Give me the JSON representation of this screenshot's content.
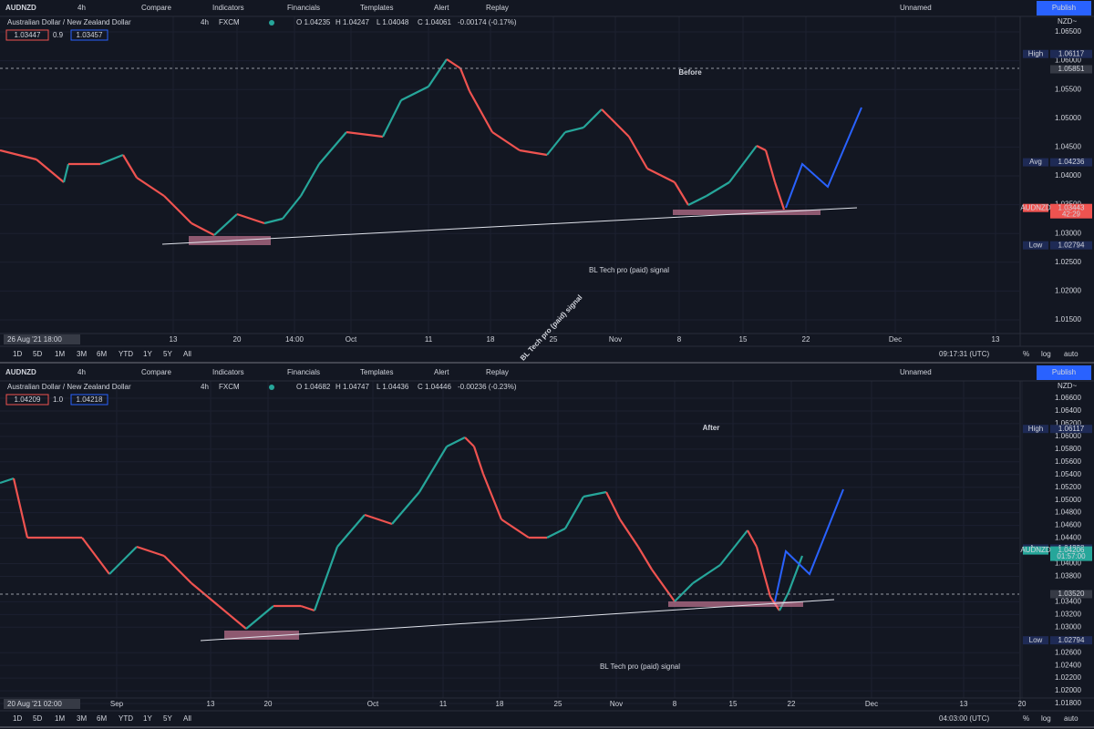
{
  "diagonal_watermark": "BL Tech pro (paid) signal",
  "panels": [
    {
      "toolbar": {
        "symbol": "AUDNZD",
        "interval": "4h",
        "buttons": [
          "Compare",
          "Indicators",
          "Financials",
          "Templates",
          "Alert",
          "Replay"
        ],
        "layout_name": "Unnamed",
        "publish": "Publish"
      },
      "legend": {
        "instrument": "Australian Dollar / New Zealand Dollar",
        "interval": "4h",
        "source": "FXCM",
        "ohlc": [
          "O 1.04235",
          "H 1.04247",
          "L 1.04048",
          "C 1.04061",
          "-0.00174 (-0.17%)"
        ],
        "bid": "1.03447",
        "spread": "0.9",
        "ask": "1.03457"
      },
      "label": "Before",
      "watermark": "BL Tech pro (paid) signal",
      "currency": "NZD~",
      "price_ticks": [
        "1.06500",
        "1.06000",
        "1.05500",
        "1.05000",
        "1.04500",
        "1.04000",
        "1.03500",
        "1.03000",
        "1.02500",
        "1.02000",
        "1.01500"
      ],
      "badges": [
        {
          "name": "High",
          "value": "1.06117"
        },
        {
          "value": "1.05851"
        },
        {
          "name": "Avg",
          "value": "1.04236"
        },
        {
          "name": "AUDNZD",
          "value": "1.03443",
          "timer": "42:29"
        },
        {
          "name": "Low",
          "value": "1.02794"
        }
      ],
      "time_ticks": [
        "13",
        "20",
        "14:00",
        "Oct",
        "11",
        "18",
        "25",
        "Nov",
        "8",
        "15",
        "22",
        "Dec",
        "13"
      ],
      "cursor_time": "26 Aug '21  18:00",
      "ranges": [
        "1D",
        "5D",
        "1M",
        "3M",
        "6M",
        "YTD",
        "1Y",
        "5Y",
        "All"
      ],
      "clock": "09:17:31 (UTC)",
      "scale_options": [
        "%",
        "log",
        "auto"
      ]
    },
    {
      "toolbar": {
        "symbol": "AUDNZD",
        "interval": "4h",
        "buttons": [
          "Compare",
          "Indicators",
          "Financials",
          "Templates",
          "Alert",
          "Replay"
        ],
        "layout_name": "Unnamed",
        "publish": "Publish"
      },
      "legend": {
        "instrument": "Australian Dollar / New Zealand Dollar",
        "interval": "4h",
        "source": "FXCM",
        "ohlc": [
          "O 1.04682",
          "H 1.04747",
          "L 1.04436",
          "C 1.04446",
          "-0.00236 (-0.23%)"
        ],
        "bid": "1.04209",
        "spread": "1.0",
        "ask": "1.04218"
      },
      "label": "After",
      "watermark": "BL Tech pro (paid) signal",
      "currency": "NZD~",
      "price_ticks": [
        "1.06600",
        "1.06400",
        "1.06200",
        "1.06000",
        "1.05800",
        "1.05600",
        "1.05400",
        "1.05200",
        "1.05000",
        "1.04800",
        "1.04600",
        "1.04400",
        "1.04000",
        "1.03800",
        "1.03400",
        "1.03200",
        "1.03000",
        "1.02600",
        "1.02400",
        "1.02200",
        "1.02000",
        "1.01800"
      ],
      "badges": [
        {
          "name": "High",
          "value": "1.06117"
        },
        {
          "name": "Avg",
          "value": "1.04238"
        },
        {
          "name": "AUDNZD",
          "value": "1.04206",
          "timer": "01:57:00"
        },
        {
          "value": "1.03520"
        },
        {
          "name": "Low",
          "value": "1.02794"
        }
      ],
      "time_ticks": [
        "Sep",
        "13",
        "20",
        "Oct",
        "11",
        "18",
        "25",
        "Nov",
        "8",
        "15",
        "22",
        "Dec",
        "13",
        "20"
      ],
      "cursor_time": "20 Aug '21  02:00",
      "ranges": [
        "1D",
        "5D",
        "1M",
        "3M",
        "6M",
        "YTD",
        "1Y",
        "5Y",
        "All"
      ],
      "clock": "04:03:00 (UTC)",
      "scale_options": [
        "%",
        "log",
        "auto"
      ]
    }
  ]
}
